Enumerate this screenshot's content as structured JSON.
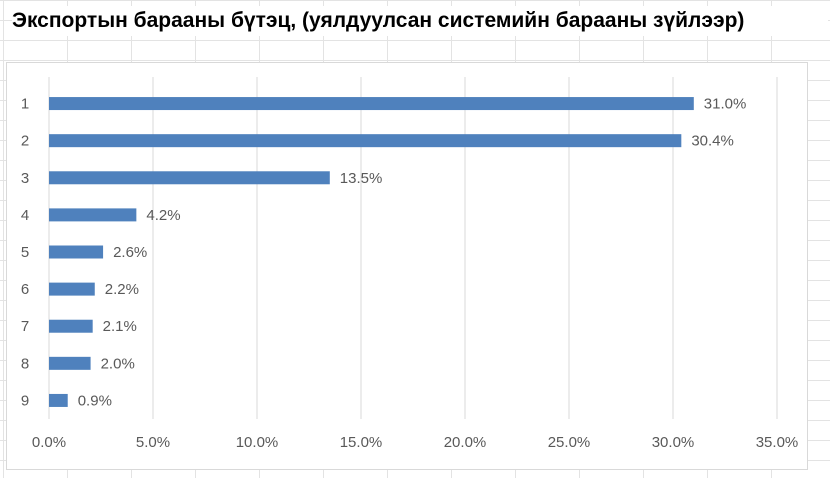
{
  "title": "Экспортын барааны бүтэц, (уялдуулсан системийн барааны зүйлээр)",
  "chart_data": {
    "type": "bar",
    "orientation": "horizontal",
    "categories": [
      "1",
      "2",
      "3",
      "4",
      "5",
      "6",
      "7",
      "8",
      "9"
    ],
    "values": [
      31.0,
      30.4,
      13.5,
      4.2,
      2.6,
      2.2,
      2.1,
      2.0,
      0.9
    ],
    "value_labels": [
      "31.0%",
      "30.4%",
      "13.5%",
      "4.2%",
      "2.6%",
      "2.2%",
      "2.1%",
      "2.0%",
      "0.9%"
    ],
    "x_ticks": [
      "0.0%",
      "5.0%",
      "10.0%",
      "15.0%",
      "20.0%",
      "25.0%",
      "30.0%",
      "35.0%"
    ],
    "xlim": [
      0,
      35
    ],
    "xlabel": "",
    "ylabel": "",
    "grid": "vertical",
    "legend": "none",
    "bar_color": "#4f81bd"
  }
}
